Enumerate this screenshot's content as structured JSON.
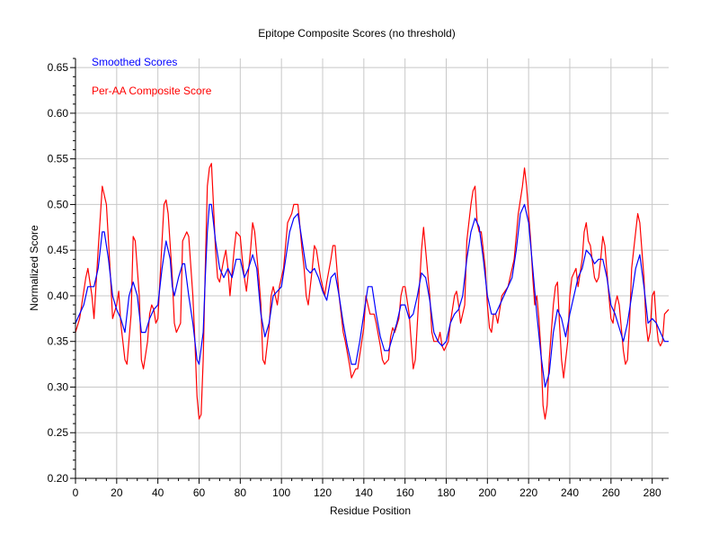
{
  "chart_data": {
    "type": "line",
    "title": "Epitope Composite Scores (no threshold)",
    "xlabel": "Residue Position",
    "ylabel": "Normalized Score",
    "xlim": [
      0,
      288
    ],
    "ylim": [
      0.2,
      0.66
    ],
    "xticks": [
      0,
      20,
      40,
      60,
      80,
      100,
      120,
      140,
      160,
      180,
      200,
      220,
      240,
      260,
      280
    ],
    "yticks": [
      "0.20",
      "0.25",
      "0.30",
      "0.35",
      "0.40",
      "0.45",
      "0.50",
      "0.55",
      "0.60",
      "0.65"
    ],
    "grid": true,
    "legend_position": "top-left",
    "colors": {
      "smoothed": "#0000ff",
      "raw": "#ff0000",
      "grid": "#c8c8c8"
    },
    "series": [
      {
        "name": "Smoothed Scores",
        "x": [
          0,
          4,
          6,
          9,
          11,
          13,
          14,
          16,
          18,
          20,
          22,
          24,
          26,
          28,
          30,
          32,
          34,
          36,
          38,
          40,
          42,
          44,
          46,
          47,
          48,
          50,
          52,
          53,
          55,
          57,
          59,
          60,
          62,
          63,
          64,
          65,
          66,
          68,
          70,
          72,
          74,
          76,
          78,
          80,
          82,
          84,
          86,
          88,
          90,
          92,
          94,
          96,
          98,
          100,
          102,
          104,
          106,
          108,
          110,
          112,
          114,
          116,
          118,
          120,
          122,
          124,
          126,
          128,
          130,
          132,
          134,
          136,
          138,
          140,
          142,
          144,
          146,
          148,
          150,
          152,
          154,
          156,
          158,
          160,
          162,
          164,
          166,
          168,
          170,
          172,
          174,
          176,
          178,
          180,
          182,
          184,
          186,
          188,
          190,
          192,
          194,
          196,
          198,
          200,
          202,
          204,
          206,
          208,
          210,
          212,
          214,
          216,
          218,
          220,
          222,
          224,
          226,
          228,
          230,
          232,
          234,
          236,
          238,
          240,
          242,
          244,
          246,
          248,
          250,
          252,
          254,
          256,
          258,
          260,
          262,
          264,
          266,
          268,
          270,
          272,
          274,
          276,
          278,
          280,
          282,
          284,
          286,
          288
        ],
        "y": [
          0.37,
          0.39,
          0.41,
          0.41,
          0.43,
          0.47,
          0.47,
          0.44,
          0.4,
          0.385,
          0.375,
          0.36,
          0.4,
          0.415,
          0.4,
          0.36,
          0.36,
          0.375,
          0.385,
          0.39,
          0.43,
          0.46,
          0.44,
          0.41,
          0.4,
          0.42,
          0.435,
          0.435,
          0.4,
          0.37,
          0.33,
          0.325,
          0.36,
          0.42,
          0.47,
          0.5,
          0.5,
          0.46,
          0.43,
          0.42,
          0.43,
          0.42,
          0.44,
          0.44,
          0.42,
          0.43,
          0.445,
          0.43,
          0.38,
          0.355,
          0.37,
          0.4,
          0.405,
          0.41,
          0.44,
          0.47,
          0.485,
          0.49,
          0.46,
          0.43,
          0.425,
          0.43,
          0.42,
          0.405,
          0.395,
          0.42,
          0.425,
          0.4,
          0.37,
          0.345,
          0.325,
          0.325,
          0.35,
          0.38,
          0.41,
          0.41,
          0.38,
          0.355,
          0.34,
          0.34,
          0.355,
          0.37,
          0.39,
          0.39,
          0.375,
          0.38,
          0.4,
          0.425,
          0.42,
          0.395,
          0.36,
          0.35,
          0.345,
          0.35,
          0.37,
          0.38,
          0.385,
          0.4,
          0.44,
          0.47,
          0.485,
          0.475,
          0.44,
          0.4,
          0.38,
          0.38,
          0.39,
          0.4,
          0.41,
          0.42,
          0.45,
          0.49,
          0.5,
          0.48,
          0.43,
          0.38,
          0.335,
          0.3,
          0.315,
          0.36,
          0.385,
          0.375,
          0.355,
          0.38,
          0.4,
          0.42,
          0.43,
          0.45,
          0.445,
          0.435,
          0.44,
          0.44,
          0.42,
          0.39,
          0.38,
          0.365,
          0.35,
          0.37,
          0.4,
          0.43,
          0.445,
          0.41,
          0.37,
          0.375,
          0.37,
          0.36,
          0.35,
          0.35
        ]
      },
      {
        "name": "Per-AA Composite Score",
        "x": [
          0,
          2,
          5,
          6,
          8,
          9,
          11,
          13,
          15,
          17,
          18,
          20,
          21,
          22,
          24,
          25,
          27,
          28,
          29,
          31,
          32,
          33,
          35,
          36,
          37,
          38,
          39,
          40,
          42,
          43,
          44,
          45,
          47,
          48,
          49,
          51,
          52,
          54,
          55,
          57,
          58,
          59,
          60,
          61,
          62,
          63,
          64,
          65,
          66,
          67,
          68,
          69,
          70,
          72,
          73,
          74,
          75,
          77,
          78,
          80,
          81,
          82,
          83,
          85,
          86,
          87,
          89,
          90,
          91,
          92,
          94,
          95,
          96,
          98,
          99,
          101,
          103,
          105,
          106,
          108,
          110,
          111,
          112,
          113,
          115,
          116,
          117,
          119,
          121,
          122,
          124,
          125,
          126,
          128,
          130,
          131,
          133,
          134,
          136,
          137,
          140,
          141,
          142,
          143,
          145,
          146,
          148,
          149,
          150,
          152,
          153,
          154,
          155,
          157,
          158,
          159,
          160,
          162,
          163,
          164,
          165,
          166,
          168,
          169,
          170,
          172,
          173,
          174,
          176,
          177,
          178,
          179,
          181,
          182,
          184,
          185,
          186,
          187,
          189,
          190,
          192,
          193,
          194,
          195,
          196,
          197,
          199,
          200,
          201,
          202,
          203,
          204,
          205,
          207,
          210,
          213,
          215,
          217,
          218,
          219,
          221,
          222,
          223,
          224,
          225,
          226,
          227,
          228,
          229,
          230,
          232,
          233,
          234,
          235,
          236,
          237,
          239,
          240,
          241,
          243,
          244,
          246,
          247,
          248,
          249,
          250,
          252,
          253,
          254,
          255,
          256,
          257,
          259,
          260,
          261,
          262,
          263,
          264,
          266,
          267,
          268,
          269,
          270,
          272,
          273,
          274,
          276,
          277,
          278,
          279,
          280,
          281,
          282,
          283,
          284,
          285,
          286,
          288
        ],
        "y": [
          0.36,
          0.375,
          0.42,
          0.43,
          0.4,
          0.375,
          0.45,
          0.52,
          0.5,
          0.42,
          0.375,
          0.39,
          0.405,
          0.37,
          0.33,
          0.325,
          0.38,
          0.465,
          0.46,
          0.4,
          0.33,
          0.32,
          0.35,
          0.38,
          0.39,
          0.385,
          0.37,
          0.375,
          0.46,
          0.5,
          0.505,
          0.49,
          0.42,
          0.37,
          0.36,
          0.37,
          0.46,
          0.47,
          0.465,
          0.4,
          0.35,
          0.29,
          0.265,
          0.27,
          0.33,
          0.43,
          0.52,
          0.54,
          0.545,
          0.5,
          0.45,
          0.42,
          0.415,
          0.44,
          0.45,
          0.43,
          0.4,
          0.45,
          0.47,
          0.465,
          0.44,
          0.42,
          0.405,
          0.45,
          0.48,
          0.47,
          0.42,
          0.39,
          0.33,
          0.325,
          0.365,
          0.4,
          0.41,
          0.39,
          0.41,
          0.43,
          0.48,
          0.49,
          0.5,
          0.5,
          0.45,
          0.43,
          0.4,
          0.39,
          0.43,
          0.455,
          0.45,
          0.42,
          0.4,
          0.415,
          0.44,
          0.455,
          0.455,
          0.4,
          0.36,
          0.35,
          0.325,
          0.31,
          0.32,
          0.32,
          0.365,
          0.4,
          0.39,
          0.38,
          0.38,
          0.37,
          0.345,
          0.33,
          0.325,
          0.33,
          0.355,
          0.365,
          0.36,
          0.375,
          0.4,
          0.41,
          0.41,
          0.38,
          0.35,
          0.32,
          0.33,
          0.37,
          0.45,
          0.475,
          0.45,
          0.4,
          0.36,
          0.35,
          0.35,
          0.36,
          0.345,
          0.34,
          0.35,
          0.37,
          0.4,
          0.405,
          0.39,
          0.37,
          0.39,
          0.46,
          0.5,
          0.515,
          0.52,
          0.48,
          0.47,
          0.47,
          0.43,
          0.39,
          0.365,
          0.36,
          0.38,
          0.38,
          0.37,
          0.4,
          0.41,
          0.44,
          0.49,
          0.52,
          0.54,
          0.52,
          0.46,
          0.42,
          0.39,
          0.4,
          0.375,
          0.34,
          0.28,
          0.265,
          0.28,
          0.33,
          0.39,
          0.41,
          0.415,
          0.37,
          0.33,
          0.31,
          0.35,
          0.4,
          0.42,
          0.43,
          0.41,
          0.44,
          0.47,
          0.48,
          0.46,
          0.455,
          0.42,
          0.415,
          0.42,
          0.44,
          0.465,
          0.455,
          0.4,
          0.375,
          0.37,
          0.39,
          0.4,
          0.39,
          0.34,
          0.325,
          0.33,
          0.37,
          0.43,
          0.47,
          0.49,
          0.48,
          0.42,
          0.37,
          0.35,
          0.36,
          0.4,
          0.405,
          0.37,
          0.35,
          0.345,
          0.35,
          0.38,
          0.385
        ]
      }
    ]
  }
}
